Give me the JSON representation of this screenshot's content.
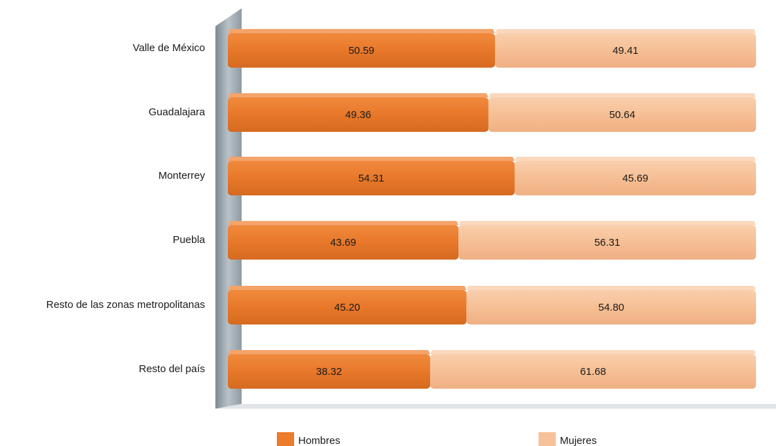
{
  "chart_data": {
    "type": "bar",
    "orientation": "horizontal",
    "stacked": "100%",
    "categories": [
      "Valle de México",
      "Guadalajara",
      "Monterrey",
      "Puebla",
      "Resto de las zonas metropolitanas",
      "Resto del país"
    ],
    "series": [
      {
        "name": "Hombres",
        "color": "#ea7c2c",
        "values": [
          50.59,
          49.36,
          54.31,
          43.69,
          45.2,
          38.32
        ],
        "labels": [
          "50.59",
          "49.36",
          "54.31",
          "43.69",
          "45.20",
          "38.32"
        ]
      },
      {
        "name": "Mujeres",
        "color": "#f7c29a",
        "values": [
          49.41,
          50.64,
          45.69,
          56.31,
          54.8,
          61.68
        ],
        "labels": [
          "49.41",
          "50.64",
          "45.69",
          "56.31",
          "54.80",
          "61.68"
        ]
      }
    ],
    "xlim": [
      0,
      100
    ],
    "grid": false,
    "legend": "bottom",
    "title": "",
    "xlabel": "",
    "ylabel": ""
  }
}
